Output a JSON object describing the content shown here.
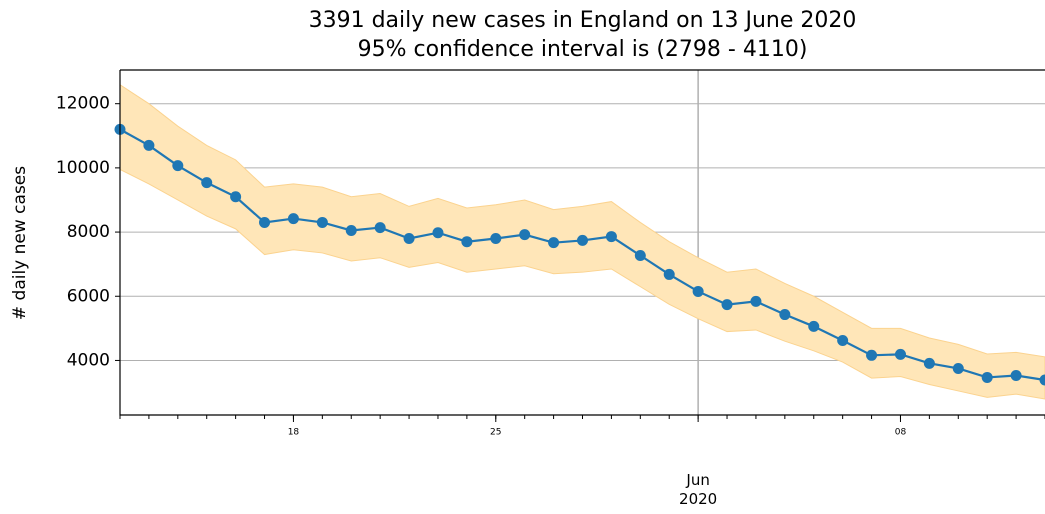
{
  "chart_data": {
    "type": "line",
    "title": "3391 daily new cases in England on 13 June 2020\n95% confidence interval is (2798 - 4110)",
    "y_label": "# daily new cases",
    "x": [
      "2020-05-12",
      "2020-05-13",
      "2020-05-14",
      "2020-05-15",
      "2020-05-16",
      "2020-05-17",
      "2020-05-18",
      "2020-05-19",
      "2020-05-20",
      "2020-05-21",
      "2020-05-22",
      "2020-05-23",
      "2020-05-24",
      "2020-05-25",
      "2020-05-26",
      "2020-05-27",
      "2020-05-28",
      "2020-05-29",
      "2020-05-30",
      "2020-05-31",
      "2020-06-01",
      "2020-06-02",
      "2020-06-03",
      "2020-06-04",
      "2020-06-05",
      "2020-06-06",
      "2020-06-07",
      "2020-06-08",
      "2020-06-09",
      "2020-06-10",
      "2020-06-11",
      "2020-06-12",
      "2020-06-13"
    ],
    "values": [
      11200,
      10700,
      10070,
      9540,
      9100,
      8300,
      8420,
      8300,
      8050,
      8140,
      7800,
      7980,
      7700,
      7800,
      7920,
      7670,
      7740,
      7860,
      7270,
      6680,
      6150,
      5740,
      5840,
      5430,
      5060,
      4620,
      4160,
      4190,
      3910,
      3750,
      3470,
      3530,
      3391
    ],
    "upper": [
      12590,
      12000,
      11300,
      10700,
      10250,
      9400,
      9500,
      9400,
      9100,
      9200,
      8800,
      9050,
      8750,
      8850,
      9000,
      8700,
      8800,
      8950,
      8300,
      7700,
      7200,
      6750,
      6850,
      6400,
      6000,
      5500,
      5000,
      5000,
      4700,
      4500,
      4200,
      4250,
      4110
    ],
    "lower": [
      9950,
      9500,
      9000,
      8500,
      8100,
      7300,
      7450,
      7350,
      7100,
      7200,
      6900,
      7050,
      6750,
      6850,
      6950,
      6700,
      6750,
      6850,
      6300,
      5750,
      5300,
      4900,
      4950,
      4600,
      4300,
      3950,
      3450,
      3500,
      3250,
      3050,
      2850,
      2950,
      2798
    ],
    "color": "#1f77b4",
    "band_color": "#ffe6b8",
    "xlim": [
      "2020-05-12",
      "2020-06-13"
    ],
    "xticks": [
      {
        "value": "2020-05-18",
        "label": "18"
      },
      {
        "value": "2020-05-25",
        "label": "25"
      },
      {
        "value": "2020-06-08",
        "label": "08"
      }
    ],
    "xticks_major": [
      {
        "value": "2020-06-01",
        "label": "Jun\n2020"
      }
    ],
    "vline": "2020-06-01",
    "ylim": [
      2300,
      13050
    ],
    "yticks": [
      4000,
      6000,
      8000,
      10000,
      12000
    ],
    "grid": true
  }
}
